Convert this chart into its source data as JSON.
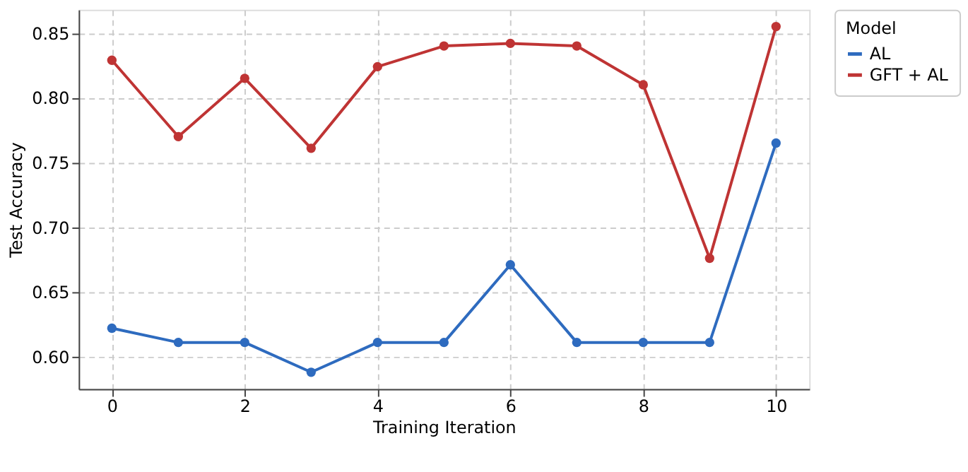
{
  "chart_data": {
    "type": "line",
    "xlabel": "Training Iteration",
    "ylabel": "Test Accuracy",
    "legend_title": "Model",
    "x": [
      0,
      1,
      2,
      3,
      4,
      5,
      6,
      7,
      8,
      9,
      10
    ],
    "series": [
      {
        "name": "AL",
        "color": "#2e6bbf",
        "values": [
          0.622,
          0.611,
          0.611,
          0.588,
          0.611,
          0.611,
          0.671,
          0.611,
          0.611,
          0.611,
          0.765
        ]
      },
      {
        "name": "GFT + AL",
        "color": "#bf3434",
        "values": [
          0.829,
          0.77,
          0.815,
          0.761,
          0.824,
          0.84,
          0.842,
          0.84,
          0.81,
          0.676,
          0.855
        ]
      }
    ],
    "xlim": [
      -0.5,
      10.5
    ],
    "xticks": [
      0,
      2,
      4,
      6,
      8,
      10
    ],
    "ylim": [
      0.575,
      0.868
    ],
    "yticks": [
      {
        "value": 0.6,
        "label": "0.60"
      },
      0.65,
      {
        "value": 0.7,
        "label": "0.70"
      },
      0.75,
      {
        "value": 0.8,
        "label": "0.80"
      },
      0.85
    ],
    "grid": true,
    "legend": "top right",
    "marker": "circle",
    "line_style": "solid"
  }
}
